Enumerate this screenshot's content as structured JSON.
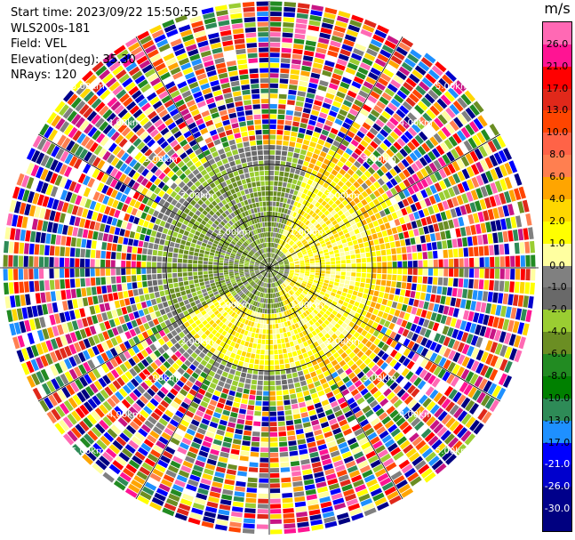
{
  "header": {
    "start_time": "Start time: 2023/09/22 15:50:55",
    "instrument": "WLS200s-181",
    "field": "Field: VEL",
    "elevation": "Elevation(deg): 35.30",
    "nrays": "NRays: 120"
  },
  "chart_data": {
    "type": "heatmap",
    "projection": "polar (PPI)",
    "field": "VEL",
    "units": "m/s",
    "nrays": 120,
    "range_ring_labels": [
      "1.00km",
      "2.00km",
      "3.00km",
      "4.00km",
      "5.00km"
    ],
    "colorbar": {
      "unit": "m/s",
      "ticks": [
        "26.0",
        "21.0",
        "17.0",
        "13.0",
        "10.0",
        "8.0",
        "6.0",
        "4.0",
        "2.0",
        "1.0",
        "0.0",
        "-1.0",
        "-2.0",
        "-4.0",
        "-6.0",
        "-8.0",
        "-10.0",
        "-13.0",
        "-17.0",
        "-21.0",
        "-26.0",
        "-30.0"
      ],
      "colors": [
        "#ff69b4",
        "#ff1493",
        "#ff0000",
        "#e0281a",
        "#ff4500",
        "#ff6347",
        "#ff7f50",
        "#ffa500",
        "#ffd700",
        "#ffff00",
        "#ffffa0",
        "#808080",
        "#696969",
        "#9acd32",
        "#6b8e23",
        "#228b22",
        "#008000",
        "#2e8b57",
        "#1e90ff",
        "#0000ff",
        "#0000cd",
        "#00008b",
        "#000080"
      ]
    }
  }
}
